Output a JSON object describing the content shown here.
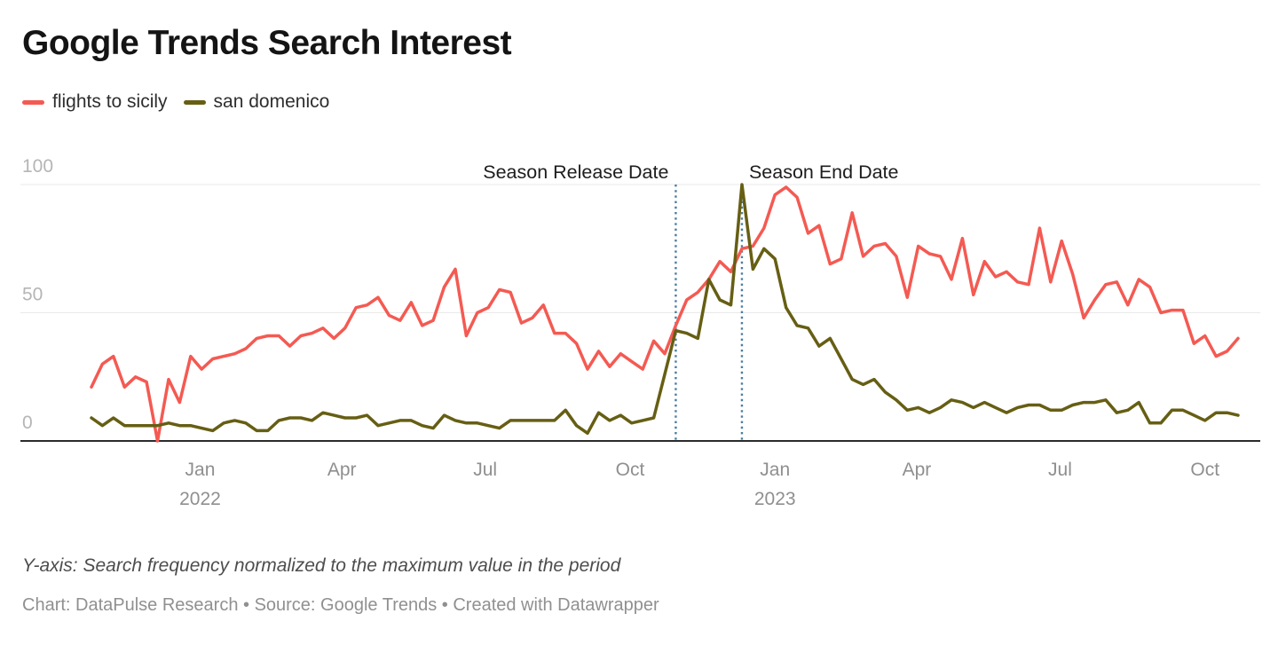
{
  "title": "Google Trends Search Interest",
  "legend": {
    "items": [
      {
        "label": "flights to sicily",
        "color": "#f45a52"
      },
      {
        "label": "san domenico",
        "color": "#665e13"
      }
    ]
  },
  "footer": {
    "note": "Y-axis: Search frequency normalized to the maximum value in the period",
    "byline": "Chart: DataPulse Research • Source: Google Trends • Created with Datawrapper"
  },
  "colors": {
    "annotation_line": "#4b7ea0",
    "annotation_text": "#1d1d1d",
    "grid": "#e9e9e9",
    "baseline": "#2b2b2b",
    "x_tick_label": "#8f8f8f",
    "y_tick_label": "#b5b5b5"
  },
  "chart_data": {
    "type": "line",
    "title": "Google Trends Search Interest",
    "x_start_date": "2021-10-24",
    "x_interval": "weekly",
    "x_end_date": "2023-10-22",
    "ylim": [
      0,
      100
    ],
    "y_ticks": [
      0,
      50,
      100
    ],
    "grid": true,
    "legend_position": "top-left",
    "x_ticks": [
      {
        "date": "2022-01-01",
        "label": "Jan",
        "year": "2022"
      },
      {
        "date": "2022-04-01",
        "label": "Apr"
      },
      {
        "date": "2022-07-01",
        "label": "Jul"
      },
      {
        "date": "2022-10-01",
        "label": "Oct"
      },
      {
        "date": "2023-01-01",
        "label": "Jan",
        "year": "2023"
      },
      {
        "date": "2023-04-01",
        "label": "Apr"
      },
      {
        "date": "2023-07-01",
        "label": "Jul"
      },
      {
        "date": "2023-10-01",
        "label": "Oct"
      }
    ],
    "annotations": [
      {
        "label": "Season Release Date",
        "date": "2022-10-30",
        "align": "right"
      },
      {
        "label": "Season End Date",
        "date": "2022-12-11",
        "align": "left"
      }
    ],
    "series": [
      {
        "name": "flights to sicily",
        "color": "#f45a52",
        "values": [
          21,
          30,
          33,
          21,
          25,
          23,
          0,
          24,
          15,
          33,
          28,
          32,
          33,
          34,
          36,
          40,
          41,
          41,
          37,
          41,
          42,
          44,
          40,
          44,
          52,
          53,
          56,
          49,
          47,
          54,
          45,
          47,
          60,
          67,
          41,
          50,
          52,
          59,
          58,
          46,
          48,
          53,
          42,
          42,
          38,
          28,
          35,
          29,
          34,
          31,
          28,
          39,
          34,
          45,
          55,
          58,
          63,
          70,
          66,
          75,
          76,
          83,
          96,
          99,
          95,
          81,
          84,
          69,
          71,
          89,
          72,
          76,
          77,
          72,
          56,
          76,
          73,
          72,
          63,
          79,
          57,
          70,
          64,
          66,
          62,
          61,
          83,
          62,
          78,
          65,
          48,
          55,
          61,
          62,
          53,
          63,
          60,
          50,
          51,
          51,
          38,
          41,
          33,
          35,
          40
        ]
      },
      {
        "name": "san domenico",
        "color": "#665e13",
        "values": [
          9,
          6,
          9,
          6,
          6,
          6,
          6,
          7,
          6,
          6,
          5,
          4,
          7,
          8,
          7,
          4,
          4,
          8,
          9,
          9,
          8,
          11,
          10,
          9,
          9,
          10,
          6,
          7,
          8,
          8,
          6,
          5,
          10,
          8,
          7,
          7,
          6,
          5,
          8,
          8,
          8,
          8,
          8,
          12,
          6,
          3,
          11,
          8,
          10,
          7,
          8,
          9,
          26,
          43,
          42,
          40,
          63,
          55,
          53,
          100,
          67,
          75,
          71,
          52,
          45,
          44,
          37,
          40,
          32,
          24,
          22,
          24,
          19,
          16,
          12,
          13,
          11,
          13,
          16,
          15,
          13,
          15,
          13,
          11,
          13,
          14,
          14,
          12,
          12,
          14,
          15,
          15,
          16,
          11,
          12,
          15,
          7,
          7,
          12,
          12,
          10,
          8,
          11,
          11,
          10
        ]
      }
    ]
  }
}
